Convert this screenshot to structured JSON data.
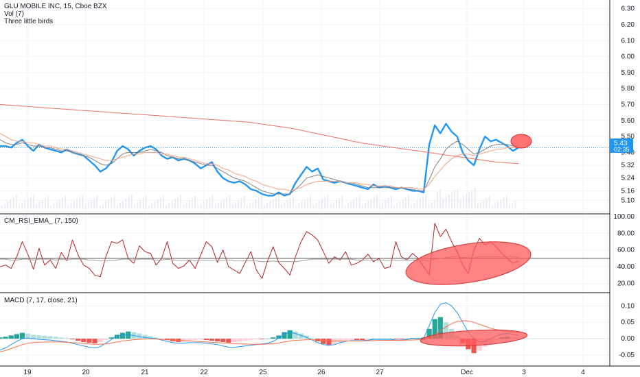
{
  "legend": {
    "symbol": "GLU MOBILE INC, 15, Cboe BZX",
    "volume": "Vol (7)",
    "pattern": "Three little birds",
    "rsi": "CM_RSI_EMA_ (7, 150)",
    "macd": "MACD (7, 17, close, 21)"
  },
  "price_badge": {
    "price": "5.43",
    "countdown": "02:35"
  },
  "colors": {
    "price": "#2196f3",
    "ma_fast": "#808080",
    "ma_slow": "#f7a07a",
    "ma_long": "#ef6f5f",
    "rsi": "#b22222",
    "rsi_ema": "#9e9e9e",
    "macd": "#2196f3",
    "signal": "#ff7043",
    "hist_pos_strong": "#26a69a",
    "hist_pos_weak": "#b2dfdb",
    "hist_neg_strong": "#ef5350",
    "hist_neg_weak": "#ffcdd2",
    "highlight": "#ff5a5a",
    "badge": "#2196f3",
    "grid": "#f0f3fa"
  },
  "x_axis": [
    "19",
    "20",
    "21",
    "22",
    "25",
    "26",
    "27",
    "Dec",
    "3",
    "4"
  ],
  "chart_data": [
    {
      "type": "line",
      "title": "GLU MOBILE INC, 15, Cboe BZX",
      "y_ticks": [
        "6.30",
        "6.20",
        "6.10",
        "6.00",
        "5.90",
        "5.80",
        "5.70",
        "5.60",
        "5.50",
        "5.40",
        "5.32",
        "5.24",
        "5.16",
        "5.10"
      ],
      "ylim": [
        5.05,
        6.32
      ],
      "last_price": 5.43,
      "series": [
        {
          "name": "price",
          "values": [
            5.44,
            5.44,
            5.43,
            5.46,
            5.48,
            5.44,
            5.41,
            5.45,
            5.43,
            5.42,
            5.41,
            5.4,
            5.42,
            5.4,
            5.39,
            5.38,
            5.35,
            5.32,
            5.28,
            5.3,
            5.34,
            5.41,
            5.44,
            5.42,
            5.38,
            5.41,
            5.43,
            5.44,
            5.42,
            5.38,
            5.36,
            5.37,
            5.35,
            5.36,
            5.35,
            5.33,
            5.3,
            5.32,
            5.34,
            5.28,
            5.24,
            5.22,
            5.21,
            5.22,
            5.2,
            5.17,
            5.16,
            5.14,
            5.13,
            5.13,
            5.15,
            5.13,
            5.14,
            5.21,
            5.26,
            5.31,
            5.28,
            5.3,
            5.23,
            5.22,
            5.21,
            5.22,
            5.21,
            5.2,
            5.19,
            5.18,
            5.17,
            5.2,
            5.18,
            5.19,
            5.18,
            5.17,
            5.18,
            5.17,
            5.16,
            5.16,
            5.15,
            5.45,
            5.57,
            5.52,
            5.58,
            5.53,
            5.5,
            5.4,
            5.35,
            5.32,
            5.42,
            5.5,
            5.47,
            5.48,
            5.46,
            5.44,
            5.41,
            5.43
          ]
        },
        {
          "name": "ma_fast",
          "values": [
            5.48,
            5.46,
            5.45,
            5.45,
            5.46,
            5.45,
            5.44,
            5.44,
            5.43,
            5.43,
            5.42,
            5.41,
            5.41,
            5.4,
            5.39,
            5.38,
            5.37,
            5.35,
            5.33,
            5.32,
            5.33,
            5.36,
            5.39,
            5.4,
            5.4,
            5.4,
            5.41,
            5.42,
            5.41,
            5.4,
            5.38,
            5.37,
            5.36,
            5.36,
            5.35,
            5.34,
            5.33,
            5.32,
            5.32,
            5.3,
            5.28,
            5.26,
            5.24,
            5.23,
            5.22,
            5.2,
            5.18,
            5.16,
            5.15,
            5.14,
            5.14,
            5.14,
            5.14,
            5.17,
            5.2,
            5.24,
            5.25,
            5.26,
            5.25,
            5.24,
            5.23,
            5.22,
            5.21,
            5.21,
            5.2,
            5.19,
            5.18,
            5.18,
            5.18,
            5.18,
            5.18,
            5.18,
            5.18,
            5.17,
            5.17,
            5.16,
            5.16,
            5.23,
            5.31,
            5.36,
            5.42,
            5.45,
            5.47,
            5.45,
            5.42,
            5.39,
            5.4,
            5.42,
            5.44,
            5.45,
            5.45,
            5.45,
            5.44,
            5.44
          ]
        },
        {
          "name": "ma_slow",
          "values": [
            5.52,
            5.5,
            5.48,
            5.47,
            5.47,
            5.46,
            5.46,
            5.45,
            5.44,
            5.44,
            5.43,
            5.42,
            5.42,
            5.41,
            5.4,
            5.39,
            5.38,
            5.37,
            5.36,
            5.35,
            5.35,
            5.36,
            5.37,
            5.38,
            5.39,
            5.39,
            5.4,
            5.4,
            5.4,
            5.39,
            5.39,
            5.38,
            5.37,
            5.37,
            5.36,
            5.35,
            5.34,
            5.33,
            5.33,
            5.32,
            5.3,
            5.29,
            5.27,
            5.26,
            5.25,
            5.23,
            5.22,
            5.2,
            5.19,
            5.18,
            5.17,
            5.17,
            5.16,
            5.17,
            5.18,
            5.2,
            5.21,
            5.22,
            5.22,
            5.22,
            5.22,
            5.22,
            5.21,
            5.21,
            5.21,
            5.2,
            5.2,
            5.19,
            5.19,
            5.19,
            5.19,
            5.18,
            5.18,
            5.18,
            5.18,
            5.17,
            5.17,
            5.2,
            5.25,
            5.29,
            5.33,
            5.36,
            5.38,
            5.39,
            5.39,
            5.38,
            5.39,
            5.4,
            5.41,
            5.42,
            5.42,
            5.43,
            5.43,
            5.43
          ]
        },
        {
          "name": "ma_long",
          "values": [
            5.7,
            5.69,
            5.68,
            5.67,
            5.66,
            5.65,
            5.64,
            5.63,
            5.62,
            5.61,
            5.6,
            5.59,
            5.57,
            5.55,
            5.52,
            5.49,
            5.46,
            5.44,
            5.42,
            5.4,
            5.38,
            5.36,
            5.34,
            5.33
          ]
        }
      ],
      "volume_label": "Vol (7)"
    },
    {
      "type": "line",
      "title": "CM_RSI_EMA_ (7, 150)",
      "y_ticks": [
        "100.00",
        "80.00",
        "60.00",
        "40.00",
        "20.00"
      ],
      "ylim": [
        13,
        100
      ],
      "hline": 50,
      "series": [
        {
          "name": "rsi",
          "values": [
            40,
            42,
            38,
            52,
            70,
            55,
            37,
            62,
            42,
            48,
            38,
            57,
            47,
            72,
            54,
            42,
            38,
            30,
            28,
            52,
            70,
            68,
            72,
            50,
            44,
            65,
            58,
            56,
            42,
            50,
            70,
            44,
            38,
            41,
            48,
            38,
            54,
            70,
            64,
            45,
            60,
            40,
            36,
            32,
            45,
            58,
            36,
            26,
            47,
            64,
            45,
            38,
            30,
            52,
            70,
            82,
            78,
            72,
            58,
            44,
            52,
            48,
            58,
            42,
            44,
            48,
            55,
            46,
            50,
            38,
            40,
            70,
            52,
            48,
            56,
            50,
            40,
            30,
            92,
            76,
            85,
            70,
            58,
            42,
            32,
            60,
            74,
            66,
            70,
            64,
            56,
            50,
            44,
            47
          ]
        },
        {
          "name": "rsi_ema",
          "values": [
            49,
            49,
            48,
            48,
            49,
            49,
            48,
            49,
            49,
            49,
            48,
            49,
            48,
            49,
            49,
            49,
            48,
            48,
            47,
            47,
            48,
            48,
            49,
            49,
            48,
            49,
            49,
            49,
            48,
            48,
            49,
            48,
            48,
            48,
            48,
            47,
            48,
            48,
            48,
            48,
            48,
            48,
            47,
            47,
            47,
            47,
            47,
            46,
            46,
            47,
            46,
            46,
            46,
            46,
            47,
            48,
            49,
            49,
            49,
            49,
            49,
            49,
            49,
            49,
            48,
            48,
            48,
            48,
            48,
            48,
            48,
            48,
            48,
            48,
            48,
            48,
            48,
            47,
            49,
            50,
            51,
            52,
            52,
            51,
            51,
            51,
            52,
            52,
            52,
            52,
            52,
            52,
            52,
            51
          ]
        }
      ]
    },
    {
      "type": "bar",
      "title": "MACD (7, 17, close, 21)",
      "y_ticks": [
        "0.10",
        "0.05",
        "0.00",
        "-0.05"
      ],
      "ylim": [
        -0.075,
        0.13
      ],
      "series": [
        {
          "name": "histogram",
          "values": [
            0.004,
            0.006,
            0.01,
            0.014,
            0.018,
            0.016,
            0.012,
            0.01,
            0.009,
            0.008,
            0.006,
            0.004,
            0.002,
            -0.002,
            -0.006,
            -0.01,
            -0.012,
            -0.014,
            -0.01,
            -0.004,
            0.004,
            0.012,
            0.018,
            0.022,
            0.02,
            0.016,
            0.012,
            0.008,
            0.004,
            0.0,
            -0.004,
            -0.008,
            -0.01,
            -0.008,
            -0.006,
            -0.004,
            -0.002,
            -0.004,
            -0.006,
            -0.008,
            -0.01,
            -0.012,
            -0.01,
            -0.008,
            -0.006,
            -0.004,
            -0.002,
            -0.002,
            0.0,
            0.004,
            0.01,
            0.02,
            0.026,
            0.022,
            0.016,
            0.01,
            0.002,
            -0.008,
            -0.016,
            -0.02,
            -0.016,
            -0.01,
            -0.006,
            -0.004,
            -0.004,
            -0.004,
            -0.002,
            0.0,
            0.0,
            0.0,
            0.0,
            -0.002,
            -0.002,
            0.0,
            0.002,
            0.002,
            0.004,
            0.03,
            0.06,
            0.066,
            0.05,
            0.03,
            0.01,
            -0.014,
            -0.032,
            -0.044,
            -0.036,
            -0.024,
            -0.012,
            -0.004,
            0.004,
            0.006,
            0.004,
            0.002
          ]
        },
        {
          "name": "macd",
          "values": [
            -0.035,
            -0.028,
            -0.018,
            -0.008,
            0.0,
            0.002,
            0.0,
            -0.002,
            -0.003,
            -0.004,
            -0.006,
            -0.008,
            -0.01,
            -0.014,
            -0.018,
            -0.022,
            -0.026,
            -0.028,
            -0.024,
            -0.014,
            -0.002,
            0.008,
            0.012,
            0.012,
            0.01,
            0.006,
            0.004,
            0.002,
            0.0,
            -0.004,
            -0.008,
            -0.012,
            -0.014,
            -0.014,
            -0.012,
            -0.012,
            -0.012,
            -0.014,
            -0.016,
            -0.018,
            -0.022,
            -0.026,
            -0.026,
            -0.024,
            -0.022,
            -0.02,
            -0.018,
            -0.016,
            -0.014,
            -0.008,
            0.002,
            0.014,
            0.02,
            0.016,
            0.01,
            0.004,
            -0.004,
            -0.012,
            -0.018,
            -0.02,
            -0.018,
            -0.012,
            -0.008,
            -0.006,
            -0.006,
            -0.006,
            -0.004,
            -0.002,
            -0.002,
            -0.002,
            -0.002,
            -0.004,
            -0.004,
            -0.002,
            0.0,
            0.0,
            0.002,
            0.04,
            0.08,
            0.105,
            0.11,
            0.1,
            0.08,
            0.05,
            0.02,
            0.0,
            -0.01,
            -0.008,
            0.0,
            0.008,
            0.014,
            0.016,
            0.014,
            0.01
          ]
        },
        {
          "name": "signal",
          "values": [
            -0.04,
            -0.036,
            -0.03,
            -0.024,
            -0.018,
            -0.014,
            -0.012,
            -0.011,
            -0.01,
            -0.01,
            -0.01,
            -0.01,
            -0.011,
            -0.012,
            -0.013,
            -0.014,
            -0.016,
            -0.017,
            -0.017,
            -0.016,
            -0.013,
            -0.01,
            -0.007,
            -0.005,
            -0.003,
            -0.002,
            -0.001,
            -0.001,
            -0.001,
            -0.002,
            -0.003,
            -0.004,
            -0.005,
            -0.006,
            -0.007,
            -0.008,
            -0.009,
            -0.01,
            -0.011,
            -0.012,
            -0.013,
            -0.014,
            -0.015,
            -0.016,
            -0.016,
            -0.017,
            -0.017,
            -0.017,
            -0.016,
            -0.015,
            -0.013,
            -0.01,
            -0.007,
            -0.005,
            -0.004,
            -0.003,
            -0.003,
            -0.004,
            -0.005,
            -0.006,
            -0.007,
            -0.007,
            -0.007,
            -0.007,
            -0.007,
            -0.007,
            -0.006,
            -0.006,
            -0.005,
            -0.005,
            -0.005,
            -0.005,
            -0.005,
            -0.004,
            -0.004,
            -0.003,
            -0.003,
            0.002,
            0.012,
            0.024,
            0.036,
            0.046,
            0.052,
            0.055,
            0.054,
            0.05,
            0.044,
            0.038,
            0.032,
            0.028,
            0.025,
            0.023,
            0.021,
            0.019
          ]
        }
      ]
    }
  ]
}
